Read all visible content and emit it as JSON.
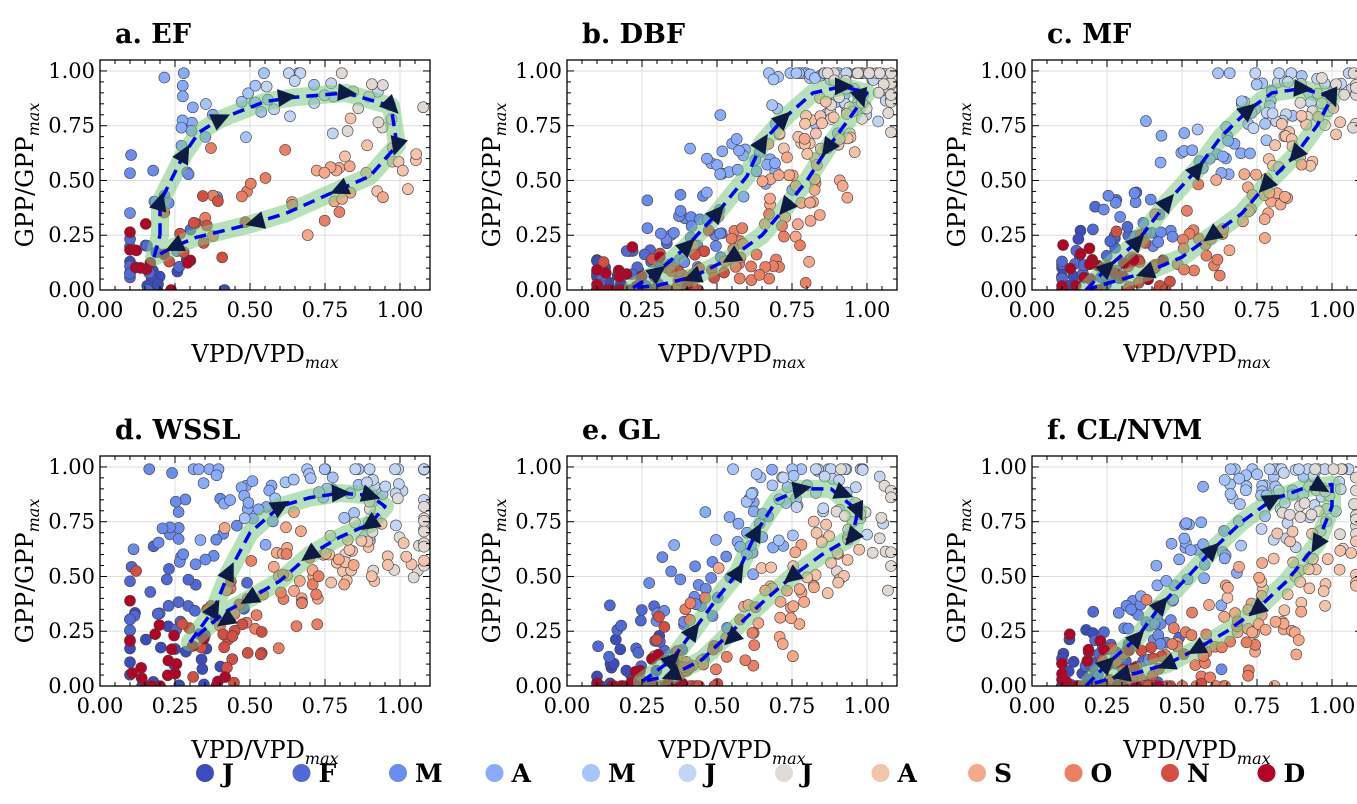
{
  "chart_data": [
    {
      "type": "scatter",
      "title": "a. EF",
      "xlabel": "VPD/VPD",
      "xlabel_sub": "max",
      "ylabel": "GPP/GPP",
      "ylabel_sub": "max",
      "xlim": [
        0.0,
        1.1
      ],
      "ylim": [
        0.0,
        1.05
      ],
      "xticks": [
        "0.00",
        "0.25",
        "0.50",
        "0.75",
        "1.00"
      ],
      "yticks": [
        "0.00",
        "0.25",
        "0.50",
        "0.75",
        "1.00"
      ],
      "grid": true,
      "cycle": [
        [
          0.2,
          0.25
        ],
        [
          0.2,
          0.4
        ],
        [
          0.28,
          0.62
        ],
        [
          0.33,
          0.72
        ],
        [
          0.4,
          0.78
        ],
        [
          0.55,
          0.86
        ],
        [
          0.65,
          0.88
        ],
        [
          0.82,
          0.9
        ],
        [
          0.97,
          0.84
        ],
        [
          0.99,
          0.66
        ],
        [
          0.9,
          0.52
        ],
        [
          0.8,
          0.46
        ],
        [
          0.62,
          0.35
        ],
        [
          0.5,
          0.3
        ],
        [
          0.32,
          0.24
        ],
        [
          0.25,
          0.2
        ],
        [
          0.18,
          0.15
        ]
      ],
      "arrows": [
        [
          0.2,
          0.4
        ],
        [
          0.28,
          0.62
        ],
        [
          0.4,
          0.78
        ],
        [
          0.62,
          0.88
        ],
        [
          0.82,
          0.9
        ],
        [
          0.97,
          0.84
        ],
        [
          0.99,
          0.66
        ],
        [
          0.8,
          0.46
        ],
        [
          0.52,
          0.31
        ],
        [
          0.25,
          0.2
        ]
      ],
      "band_width": 0.05,
      "scatter_spread": 0.09,
      "points_per_month": 12,
      "month_centers": [
        [
          0.16,
          0.05
        ],
        [
          0.18,
          0.18
        ],
        [
          0.22,
          0.45
        ],
        [
          0.3,
          0.8
        ],
        [
          0.5,
          0.9
        ],
        [
          0.7,
          0.85
        ],
        [
          0.9,
          0.9
        ],
        [
          0.95,
          0.65
        ],
        [
          0.8,
          0.55
        ],
        [
          0.55,
          0.45
        ],
        [
          0.35,
          0.25
        ],
        [
          0.18,
          0.12
        ]
      ]
    },
    {
      "type": "scatter",
      "title": "b. DBF",
      "xlabel": "VPD/VPD",
      "xlabel_sub": "max",
      "ylabel": "GPP/GPP",
      "ylabel_sub": "max",
      "xlim": [
        0.0,
        1.1
      ],
      "ylim": [
        0.0,
        1.05
      ],
      "xticks": [
        "0.00",
        "0.25",
        "0.50",
        "0.75",
        "1.00"
      ],
      "yticks": [
        "0.00",
        "0.25",
        "0.50",
        "0.75",
        "1.00"
      ],
      "grid": true,
      "cycle": [
        [
          0.22,
          0.01
        ],
        [
          0.3,
          0.08
        ],
        [
          0.4,
          0.2
        ],
        [
          0.5,
          0.35
        ],
        [
          0.6,
          0.52
        ],
        [
          0.65,
          0.67
        ],
        [
          0.72,
          0.78
        ],
        [
          0.82,
          0.9
        ],
        [
          0.92,
          0.93
        ],
        [
          1.0,
          0.9
        ],
        [
          0.95,
          0.8
        ],
        [
          0.87,
          0.65
        ],
        [
          0.8,
          0.5
        ],
        [
          0.73,
          0.38
        ],
        [
          0.65,
          0.25
        ],
        [
          0.55,
          0.15
        ],
        [
          0.42,
          0.06
        ],
        [
          0.3,
          0.02
        ]
      ],
      "arrows": [
        [
          0.3,
          0.08
        ],
        [
          0.4,
          0.2
        ],
        [
          0.5,
          0.35
        ],
        [
          0.65,
          0.67
        ],
        [
          0.72,
          0.78
        ],
        [
          0.92,
          0.93
        ],
        [
          0.98,
          0.88
        ],
        [
          0.87,
          0.65
        ],
        [
          0.73,
          0.38
        ],
        [
          0.55,
          0.15
        ],
        [
          0.42,
          0.06
        ]
      ],
      "band_width": 0.05,
      "scatter_spread": 0.08,
      "points_per_month": 28,
      "month_centers": [
        [
          0.15,
          0.01
        ],
        [
          0.25,
          0.05
        ],
        [
          0.4,
          0.25
        ],
        [
          0.6,
          0.6
        ],
        [
          0.8,
          0.92
        ],
        [
          0.95,
          0.93
        ],
        [
          1.0,
          0.9
        ],
        [
          0.85,
          0.7
        ],
        [
          0.75,
          0.45
        ],
        [
          0.6,
          0.2
        ],
        [
          0.4,
          0.06
        ],
        [
          0.2,
          0.01
        ]
      ]
    },
    {
      "type": "scatter",
      "title": "c. MF",
      "xlabel": "VPD/VPD",
      "xlabel_sub": "max",
      "ylabel": "GPP/GPP",
      "ylabel_sub": "max",
      "xlim": [
        0.0,
        1.1
      ],
      "ylim": [
        0.0,
        1.05
      ],
      "xticks": [
        "0.00",
        "0.25",
        "0.50",
        "0.75",
        "1.00"
      ],
      "yticks": [
        "0.00",
        "0.25",
        "0.50",
        "0.75",
        "1.00"
      ],
      "grid": true,
      "cycle": [
        [
          0.18,
          0.0
        ],
        [
          0.25,
          0.1
        ],
        [
          0.35,
          0.22
        ],
        [
          0.45,
          0.4
        ],
        [
          0.55,
          0.55
        ],
        [
          0.63,
          0.7
        ],
        [
          0.72,
          0.82
        ],
        [
          0.8,
          0.9
        ],
        [
          0.9,
          0.92
        ],
        [
          1.0,
          0.88
        ],
        [
          0.95,
          0.75
        ],
        [
          0.88,
          0.62
        ],
        [
          0.78,
          0.48
        ],
        [
          0.7,
          0.35
        ],
        [
          0.6,
          0.25
        ],
        [
          0.5,
          0.15
        ],
        [
          0.38,
          0.08
        ],
        [
          0.25,
          0.03
        ]
      ],
      "arrows": [
        [
          0.25,
          0.1
        ],
        [
          0.35,
          0.22
        ],
        [
          0.45,
          0.4
        ],
        [
          0.55,
          0.55
        ],
        [
          0.72,
          0.82
        ],
        [
          0.9,
          0.92
        ],
        [
          1.0,
          0.88
        ],
        [
          0.88,
          0.62
        ],
        [
          0.78,
          0.48
        ],
        [
          0.6,
          0.25
        ],
        [
          0.38,
          0.08
        ]
      ],
      "band_width": 0.05,
      "scatter_spread": 0.08,
      "points_per_month": 20,
      "month_centers": [
        [
          0.17,
          0.03
        ],
        [
          0.2,
          0.2
        ],
        [
          0.35,
          0.3
        ],
        [
          0.55,
          0.65
        ],
        [
          0.75,
          0.88
        ],
        [
          0.9,
          0.93
        ],
        [
          1.0,
          0.9
        ],
        [
          0.9,
          0.7
        ],
        [
          0.75,
          0.4
        ],
        [
          0.55,
          0.2
        ],
        [
          0.35,
          0.08
        ],
        [
          0.2,
          0.05
        ]
      ]
    },
    {
      "type": "scatter",
      "title": "d. WSSL",
      "xlabel": "VPD/VPD",
      "xlabel_sub": "max",
      "ylabel": "GPP/GPP",
      "ylabel_sub": "max",
      "xlim": [
        0.0,
        1.1
      ],
      "ylim": [
        0.0,
        1.05
      ],
      "xticks": [
        "0.00",
        "0.25",
        "0.50",
        "0.75",
        "1.00"
      ],
      "yticks": [
        "0.00",
        "0.25",
        "0.50",
        "0.75",
        "1.00"
      ],
      "grid": true,
      "cycle": [
        [
          0.3,
          0.2
        ],
        [
          0.38,
          0.35
        ],
        [
          0.43,
          0.52
        ],
        [
          0.5,
          0.7
        ],
        [
          0.6,
          0.82
        ],
        [
          0.7,
          0.86
        ],
        [
          0.8,
          0.88
        ],
        [
          0.9,
          0.87
        ],
        [
          0.95,
          0.82
        ],
        [
          0.9,
          0.74
        ],
        [
          0.8,
          0.68
        ],
        [
          0.7,
          0.6
        ],
        [
          0.6,
          0.48
        ],
        [
          0.5,
          0.4
        ],
        [
          0.42,
          0.34
        ],
        [
          0.35,
          0.26
        ]
      ],
      "arrows": [
        [
          0.38,
          0.35
        ],
        [
          0.43,
          0.52
        ],
        [
          0.6,
          0.82
        ],
        [
          0.8,
          0.88
        ],
        [
          0.9,
          0.87
        ],
        [
          0.9,
          0.74
        ],
        [
          0.7,
          0.6
        ],
        [
          0.5,
          0.4
        ],
        [
          0.42,
          0.3
        ]
      ],
      "band_width": 0.05,
      "scatter_spread": 0.1,
      "points_per_month": 22,
      "month_centers": [
        [
          0.2,
          0.15
        ],
        [
          0.25,
          0.4
        ],
        [
          0.3,
          0.7
        ],
        [
          0.45,
          0.85
        ],
        [
          0.75,
          0.9
        ],
        [
          0.95,
          0.9
        ],
        [
          1.0,
          0.7
        ],
        [
          0.9,
          0.55
        ],
        [
          0.7,
          0.55
        ],
        [
          0.55,
          0.4
        ],
        [
          0.4,
          0.25
        ],
        [
          0.22,
          0.15
        ]
      ]
    },
    {
      "type": "scatter",
      "title": "e. GL",
      "xlabel": "VPD/VPD",
      "xlabel_sub": "max",
      "ylabel": "GPP/GPP",
      "ylabel_sub": "max",
      "xlim": [
        0.0,
        1.1
      ],
      "ylim": [
        0.0,
        1.05
      ],
      "xticks": [
        "0.00",
        "0.25",
        "0.50",
        "0.75",
        "1.00"
      ],
      "yticks": [
        "0.00",
        "0.25",
        "0.50",
        "0.75",
        "1.00"
      ],
      "grid": true,
      "cycle": [
        [
          0.25,
          0.02
        ],
        [
          0.35,
          0.12
        ],
        [
          0.42,
          0.25
        ],
        [
          0.5,
          0.4
        ],
        [
          0.57,
          0.52
        ],
        [
          0.63,
          0.7
        ],
        [
          0.7,
          0.85
        ],
        [
          0.78,
          0.9
        ],
        [
          0.88,
          0.9
        ],
        [
          0.97,
          0.8
        ],
        [
          0.95,
          0.68
        ],
        [
          0.85,
          0.6
        ],
        [
          0.75,
          0.5
        ],
        [
          0.65,
          0.38
        ],
        [
          0.55,
          0.25
        ],
        [
          0.45,
          0.12
        ],
        [
          0.35,
          0.05
        ]
      ],
      "arrows": [
        [
          0.35,
          0.12
        ],
        [
          0.42,
          0.25
        ],
        [
          0.57,
          0.52
        ],
        [
          0.63,
          0.7
        ],
        [
          0.78,
          0.9
        ],
        [
          0.92,
          0.88
        ],
        [
          0.97,
          0.8
        ],
        [
          0.95,
          0.68
        ],
        [
          0.75,
          0.5
        ],
        [
          0.55,
          0.22
        ],
        [
          0.35,
          0.05
        ]
      ],
      "band_width": 0.05,
      "scatter_spread": 0.09,
      "points_per_month": 22,
      "month_centers": [
        [
          0.2,
          0.02
        ],
        [
          0.3,
          0.15
        ],
        [
          0.45,
          0.4
        ],
        [
          0.6,
          0.65
        ],
        [
          0.75,
          0.9
        ],
        [
          0.92,
          0.92
        ],
        [
          1.0,
          0.75
        ],
        [
          0.85,
          0.55
        ],
        [
          0.7,
          0.4
        ],
        [
          0.5,
          0.2
        ],
        [
          0.35,
          0.06
        ],
        [
          0.22,
          0.03
        ]
      ]
    },
    {
      "type": "scatter",
      "title": "f. CL/NVM",
      "xlabel": "VPD/VPD",
      "xlabel_sub": "max",
      "ylabel": "GPP/GPP",
      "ylabel_sub": "max",
      "xlim": [
        0.0,
        1.1
      ],
      "ylim": [
        0.0,
        1.05
      ],
      "xticks": [
        "0.00",
        "0.25",
        "0.50",
        "0.75",
        "1.00"
      ],
      "yticks": [
        "0.00",
        "0.25",
        "0.50",
        "0.75",
        "1.00"
      ],
      "grid": true,
      "cycle": [
        [
          0.18,
          0.0
        ],
        [
          0.25,
          0.1
        ],
        [
          0.35,
          0.22
        ],
        [
          0.43,
          0.37
        ],
        [
          0.52,
          0.5
        ],
        [
          0.6,
          0.62
        ],
        [
          0.7,
          0.75
        ],
        [
          0.8,
          0.85
        ],
        [
          0.9,
          0.9
        ],
        [
          1.0,
          0.92
        ],
        [
          1.0,
          0.82
        ],
        [
          0.95,
          0.65
        ],
        [
          0.85,
          0.48
        ],
        [
          0.75,
          0.35
        ],
        [
          0.65,
          0.25
        ],
        [
          0.55,
          0.17
        ],
        [
          0.45,
          0.1
        ],
        [
          0.35,
          0.06
        ],
        [
          0.25,
          0.03
        ]
      ],
      "arrows": [
        [
          0.25,
          0.1
        ],
        [
          0.35,
          0.22
        ],
        [
          0.43,
          0.37
        ],
        [
          0.6,
          0.62
        ],
        [
          0.8,
          0.85
        ],
        [
          0.96,
          0.91
        ],
        [
          0.95,
          0.65
        ],
        [
          0.75,
          0.35
        ],
        [
          0.55,
          0.17
        ],
        [
          0.45,
          0.1
        ],
        [
          0.3,
          0.05
        ]
      ],
      "band_width": 0.05,
      "scatter_spread": 0.09,
      "points_per_month": 30,
      "month_centers": [
        [
          0.15,
          0.02
        ],
        [
          0.25,
          0.1
        ],
        [
          0.4,
          0.3
        ],
        [
          0.55,
          0.6
        ],
        [
          0.75,
          0.88
        ],
        [
          0.9,
          0.92
        ],
        [
          1.0,
          0.8
        ],
        [
          0.9,
          0.55
        ],
        [
          0.75,
          0.3
        ],
        [
          0.55,
          0.15
        ],
        [
          0.35,
          0.06
        ],
        [
          0.2,
          0.02
        ]
      ]
    }
  ],
  "legend": {
    "placement": "bottom",
    "entries": [
      {
        "label": "J",
        "color": "#3a4cc0"
      },
      {
        "label": "F",
        "color": "#4f69d9"
      },
      {
        "label": "M",
        "color": "#6a8bef"
      },
      {
        "label": "A",
        "color": "#88abfd"
      },
      {
        "label": "M",
        "color": "#a6c4fe"
      },
      {
        "label": "J",
        "color": "#c3d5f4"
      },
      {
        "label": "J",
        "color": "#e1d9d3"
      },
      {
        "label": "A",
        "color": "#f4c3aa"
      },
      {
        "label": "S",
        "color": "#f7a889"
      },
      {
        "label": "O",
        "color": "#ec7f63"
      },
      {
        "label": "N",
        "color": "#d44e41"
      },
      {
        "label": "D",
        "color": "#b40426"
      }
    ]
  },
  "styles": {
    "cycle_line_color": "#0000ff",
    "band_color": "#7cc87c",
    "arrow_color": "#0d1a45",
    "grid_color": "#dddddd",
    "point_edge_color": "#444444"
  }
}
